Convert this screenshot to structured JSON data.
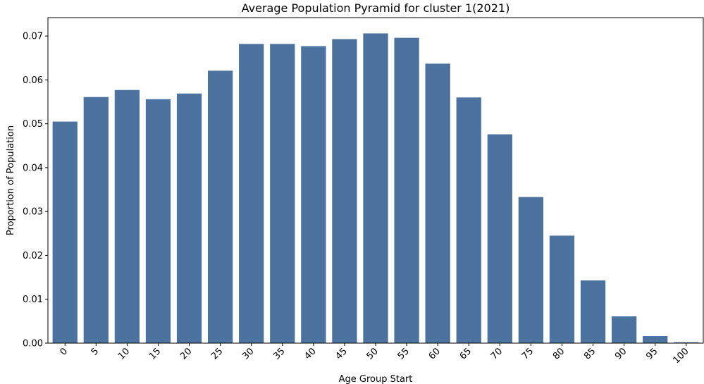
{
  "chart_data": {
    "type": "bar",
    "title": "Average Population Pyramid for cluster 1(2021)",
    "xlabel": "Age Group Start",
    "ylabel": "Proportion of Population",
    "categories": [
      "0",
      "5",
      "10",
      "15",
      "20",
      "25",
      "30",
      "35",
      "40",
      "45",
      "50",
      "55",
      "60",
      "65",
      "70",
      "75",
      "80",
      "85",
      "90",
      "95",
      "100"
    ],
    "values": [
      0.0505,
      0.0561,
      0.0577,
      0.0556,
      0.0569,
      0.0621,
      0.0682,
      0.0682,
      0.0677,
      0.0693,
      0.0706,
      0.0696,
      0.0637,
      0.056,
      0.0476,
      0.0333,
      0.0245,
      0.0143,
      0.0061,
      0.0016,
      0.0002
    ],
    "ylim": [
      0,
      0.0742
    ],
    "yticks": [
      "0.00",
      "0.01",
      "0.02",
      "0.03",
      "0.04",
      "0.05",
      "0.06",
      "0.07"
    ],
    "bar_color": "#4c72a0",
    "grid": false,
    "legend": "none"
  }
}
